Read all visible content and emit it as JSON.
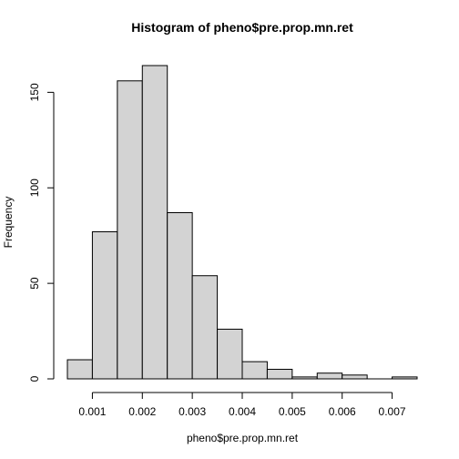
{
  "chart_data": {
    "type": "bar",
    "title": "Histogram of pheno$pre.prop.mn.ret",
    "xlabel": "pheno$pre.prop.mn.ret",
    "ylabel": "Frequency",
    "bins": [
      {
        "start": 0.0005,
        "end": 0.001,
        "count": 10
      },
      {
        "start": 0.001,
        "end": 0.0015,
        "count": 77
      },
      {
        "start": 0.0015,
        "end": 0.002,
        "count": 156
      },
      {
        "start": 0.002,
        "end": 0.0025,
        "count": 164
      },
      {
        "start": 0.0025,
        "end": 0.003,
        "count": 87
      },
      {
        "start": 0.003,
        "end": 0.0035,
        "count": 54
      },
      {
        "start": 0.0035,
        "end": 0.004,
        "count": 26
      },
      {
        "start": 0.004,
        "end": 0.0045,
        "count": 9
      },
      {
        "start": 0.0045,
        "end": 0.005,
        "count": 5
      },
      {
        "start": 0.005,
        "end": 0.0055,
        "count": 1
      },
      {
        "start": 0.0055,
        "end": 0.006,
        "count": 3
      },
      {
        "start": 0.006,
        "end": 0.0065,
        "count": 2
      },
      {
        "start": 0.0065,
        "end": 0.007,
        "count": 0
      },
      {
        "start": 0.007,
        "end": 0.0075,
        "count": 1
      }
    ],
    "xticks": [
      0.001,
      0.002,
      0.003,
      0.004,
      0.005,
      0.006,
      0.007
    ],
    "xtick_labels": [
      "0.001",
      "0.002",
      "0.003",
      "0.004",
      "0.005",
      "0.006",
      "0.007"
    ],
    "yticks": [
      0,
      50,
      100,
      150
    ],
    "ytick_labels": [
      "0",
      "50",
      "100",
      "150"
    ],
    "xlim": [
      0.0005,
      0.0075
    ],
    "ylim": [
      0,
      164
    ],
    "bar_color": "#d3d3d3",
    "grid": false
  }
}
